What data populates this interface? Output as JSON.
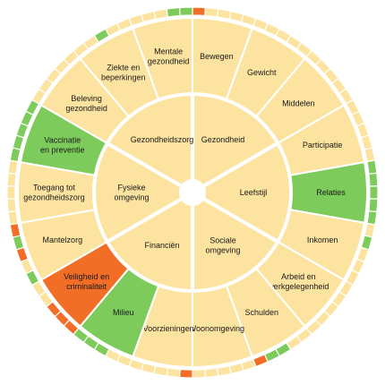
{
  "colors": {
    "neutral": "#fde3a0",
    "good": "#7ccb5b",
    "bad": "#f26d26",
    "line": "#ffffff"
  },
  "domains": [
    {
      "id": "gezondheid",
      "lines": [
        "Gezondheid"
      ],
      "status": "neutral"
    },
    {
      "id": "leefstijl",
      "lines": [
        "Leefstijl"
      ],
      "status": "neutral"
    },
    {
      "id": "sociale-omgeving",
      "lines": [
        "Sociale",
        "omgeving"
      ],
      "status": "neutral"
    },
    {
      "id": "financien",
      "lines": [
        "Financiën"
      ],
      "status": "neutral"
    },
    {
      "id": "fysieke-omgeving",
      "lines": [
        "Fysieke",
        "omgeving"
      ],
      "status": "neutral"
    },
    {
      "id": "gezondheidszorg",
      "lines": [
        "Gezondheidszorg"
      ],
      "status": "neutral"
    }
  ],
  "themes": [
    {
      "id": "bewegen",
      "lines": [
        "Bewegen"
      ],
      "status": "neutral",
      "ring": [
        "bad",
        "neutral",
        "neutral",
        "neutral",
        "neutral"
      ]
    },
    {
      "id": "gewicht",
      "lines": [
        "Gewicht"
      ],
      "status": "neutral",
      "ring": [
        "neutral",
        "neutral",
        "neutral",
        "neutral",
        "neutral"
      ]
    },
    {
      "id": "middelen",
      "lines": [
        "Middelen"
      ],
      "status": "neutral",
      "ring": [
        "neutral",
        "neutral",
        "neutral",
        "neutral",
        "neutral"
      ]
    },
    {
      "id": "participatie",
      "lines": [
        "Participatie"
      ],
      "status": "neutral",
      "ring": [
        "neutral",
        "neutral",
        "neutral",
        "neutral",
        "neutral"
      ]
    },
    {
      "id": "relaties",
      "lines": [
        "Relaties"
      ],
      "status": "good",
      "ring": [
        "good",
        "good",
        "good",
        "good",
        "good"
      ]
    },
    {
      "id": "inkomen",
      "lines": [
        "Inkomen"
      ],
      "status": "neutral",
      "ring": [
        "neutral",
        "good",
        "neutral",
        "neutral",
        "neutral"
      ]
    },
    {
      "id": "arbeid-en-werkgelegenheid",
      "lines": [
        "Arbeid en",
        "werkgelegenheid"
      ],
      "status": "neutral",
      "ring": [
        "neutral",
        "neutral",
        "neutral",
        "neutral",
        "neutral"
      ]
    },
    {
      "id": "schulden",
      "lines": [
        "Schulden"
      ],
      "status": "neutral",
      "ring": [
        "neutral",
        "neutral",
        "good",
        "good",
        "bad"
      ]
    },
    {
      "id": "woonomgeving",
      "lines": [
        "Woonomgeving"
      ],
      "status": "neutral",
      "ring": [
        "neutral",
        "neutral",
        "neutral",
        "neutral",
        "neutral"
      ]
    },
    {
      "id": "voorzieningen",
      "lines": [
        "Voorzieningen"
      ],
      "status": "neutral",
      "ring": [
        "bad",
        "neutral",
        "neutral",
        "neutral",
        "neutral"
      ]
    },
    {
      "id": "milieu",
      "lines": [
        "Milieu"
      ],
      "status": "good",
      "ring": [
        "neutral",
        "neutral",
        "good",
        "good",
        "good"
      ]
    },
    {
      "id": "veiligheid-en-criminaliteit",
      "lines": [
        "Veiligheid en",
        "criminaliteit"
      ],
      "status": "bad",
      "ring": [
        "bad",
        "bad",
        "bad",
        "neutral",
        "neutral"
      ]
    },
    {
      "id": "mantelzorg",
      "lines": [
        "Mantelzorg"
      ],
      "status": "neutral",
      "ring": [
        "good",
        "neutral",
        "bad",
        "good",
        "bad"
      ]
    },
    {
      "id": "toegang-tot-gezondheidszorg",
      "lines": [
        "Toegang tot",
        "gezondheidszorg"
      ],
      "status": "neutral",
      "ring": [
        "neutral",
        "neutral",
        "neutral",
        "neutral",
        "neutral"
      ]
    },
    {
      "id": "vaccinatie-en-preventie",
      "lines": [
        "Vaccinatie",
        "en preventie"
      ],
      "status": "good",
      "ring": [
        "good",
        "good",
        "good",
        "good",
        "good"
      ]
    },
    {
      "id": "beleving-gezondheid",
      "lines": [
        "Beleving",
        "gezondheid"
      ],
      "status": "neutral",
      "ring": [
        "neutral",
        "neutral",
        "neutral",
        "neutral",
        "neutral"
      ]
    },
    {
      "id": "ziekte-en-beperkingen",
      "lines": [
        "Ziekte en",
        "beperkingen"
      ],
      "status": "neutral",
      "ring": [
        "neutral",
        "neutral",
        "good",
        "neutral",
        "neutral"
      ]
    },
    {
      "id": "mentale-gezondheid",
      "lines": [
        "Mentale",
        "gezondheid"
      ],
      "status": "neutral",
      "ring": [
        "neutral",
        "neutral",
        "neutral",
        "good",
        "good"
      ]
    }
  ]
}
